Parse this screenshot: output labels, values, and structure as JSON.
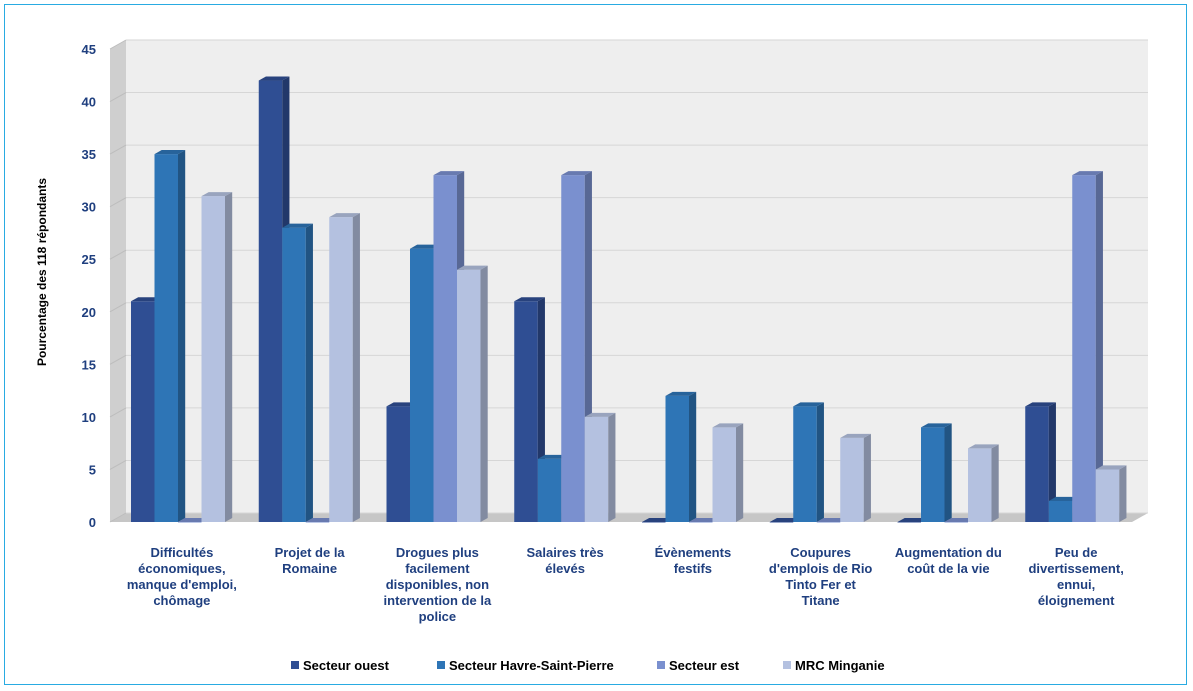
{
  "chart_data": {
    "type": "bar",
    "ylabel": "Pourcentage des 118 répondants",
    "ylim": [
      0,
      45
    ],
    "yticks": [
      0,
      5,
      10,
      15,
      20,
      25,
      30,
      35,
      40,
      45
    ],
    "grid": true,
    "legend_position": "bottom",
    "categories": [
      [
        "Difficultés",
        "économiques,",
        "manque d'emploi,",
        "chômage"
      ],
      [
        "Projet de la",
        "Romaine"
      ],
      [
        "Drogues plus",
        "facilement",
        "disponibles, non",
        "intervention de la",
        "police"
      ],
      [
        "Salaires très",
        "élevés"
      ],
      [
        "Évènements",
        "festifs"
      ],
      [
        "Coupures",
        "d'emplois de Rio",
        "Tinto Fer et",
        "Titane"
      ],
      [
        "Augmentation du",
        "coût de la vie"
      ],
      [
        "Peu de",
        "divertissement,",
        "ennui,",
        "éloignement"
      ]
    ],
    "series": [
      {
        "name": "Secteur ouest",
        "color": "#2f4e93",
        "values": [
          21,
          42,
          11,
          21,
          0,
          0,
          0,
          11
        ]
      },
      {
        "name": "Secteur Havre-Saint-Pierre",
        "color": "#2e75b6",
        "values": [
          35,
          28,
          26,
          6,
          12,
          11,
          9,
          2
        ]
      },
      {
        "name": "Secteur est",
        "color": "#7a90cf",
        "values": [
          0,
          0,
          33,
          33,
          0,
          0,
          0,
          33
        ]
      },
      {
        "name": "MRC Minganie",
        "color": "#b4c1e0",
        "values": [
          31,
          29,
          24,
          10,
          9,
          8,
          7,
          5
        ]
      }
    ]
  }
}
